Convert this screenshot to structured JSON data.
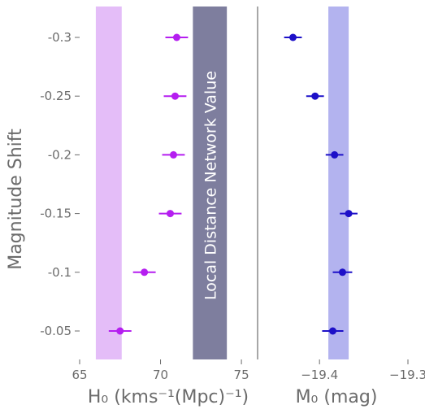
{
  "chart_data": [
    {
      "type": "scatter",
      "panel": "left",
      "categories": [
        "-0.3",
        "-0.25",
        "-0.2",
        "-0.15",
        "-0.1",
        "-0.05"
      ],
      "y_values": [
        -0.3,
        -0.25,
        -0.2,
        -0.15,
        -0.1,
        -0.05
      ],
      "series": [
        {
          "color": "#b51ef0",
          "x": [
            71.0,
            70.9,
            70.8,
            70.6,
            69.0,
            67.5
          ],
          "xerr": [
            0.7,
            0.7,
            0.7,
            0.7,
            0.7,
            0.7
          ]
        }
      ],
      "bands": [
        {
          "x_range": [
            66.0,
            67.6
          ],
          "color": "#e4bdf8",
          "label": ""
        },
        {
          "x_range": [
            72.0,
            74.1
          ],
          "color": "#7e7e9e",
          "label": "Local Distance Network Value"
        }
      ],
      "xlim": [
        65.0,
        76.0
      ],
      "xticks": [
        "65",
        "70",
        "75"
      ],
      "xlabel": "H₀ (kms⁻¹(Mpc)⁻¹)",
      "ylabel": "Magnitude Shift",
      "grid": false
    },
    {
      "type": "scatter",
      "panel": "right",
      "categories": [
        "-0.3",
        "-0.25",
        "-0.2",
        "-0.15",
        "-0.1",
        "-0.05"
      ],
      "y_values": [
        -0.3,
        -0.25,
        -0.2,
        -0.15,
        -0.1,
        -0.05
      ],
      "series": [
        {
          "color": "#1d10c8",
          "x": [
            -19.43,
            -19.405,
            -19.383,
            -19.367,
            -19.374,
            -19.385
          ],
          "xerr": [
            0.01,
            0.01,
            0.01,
            0.01,
            0.011,
            0.012
          ]
        }
      ],
      "bands": [
        {
          "x_range": [
            -19.39,
            -19.367
          ],
          "color": "#b3b3ef",
          "label": ""
        }
      ],
      "xlim": [
        -19.47,
        -19.3
      ],
      "xticks": [
        "−19.4",
        "−19.3"
      ],
      "xlabel": "M₀ (mag)",
      "ylabel": "",
      "grid": false
    }
  ]
}
